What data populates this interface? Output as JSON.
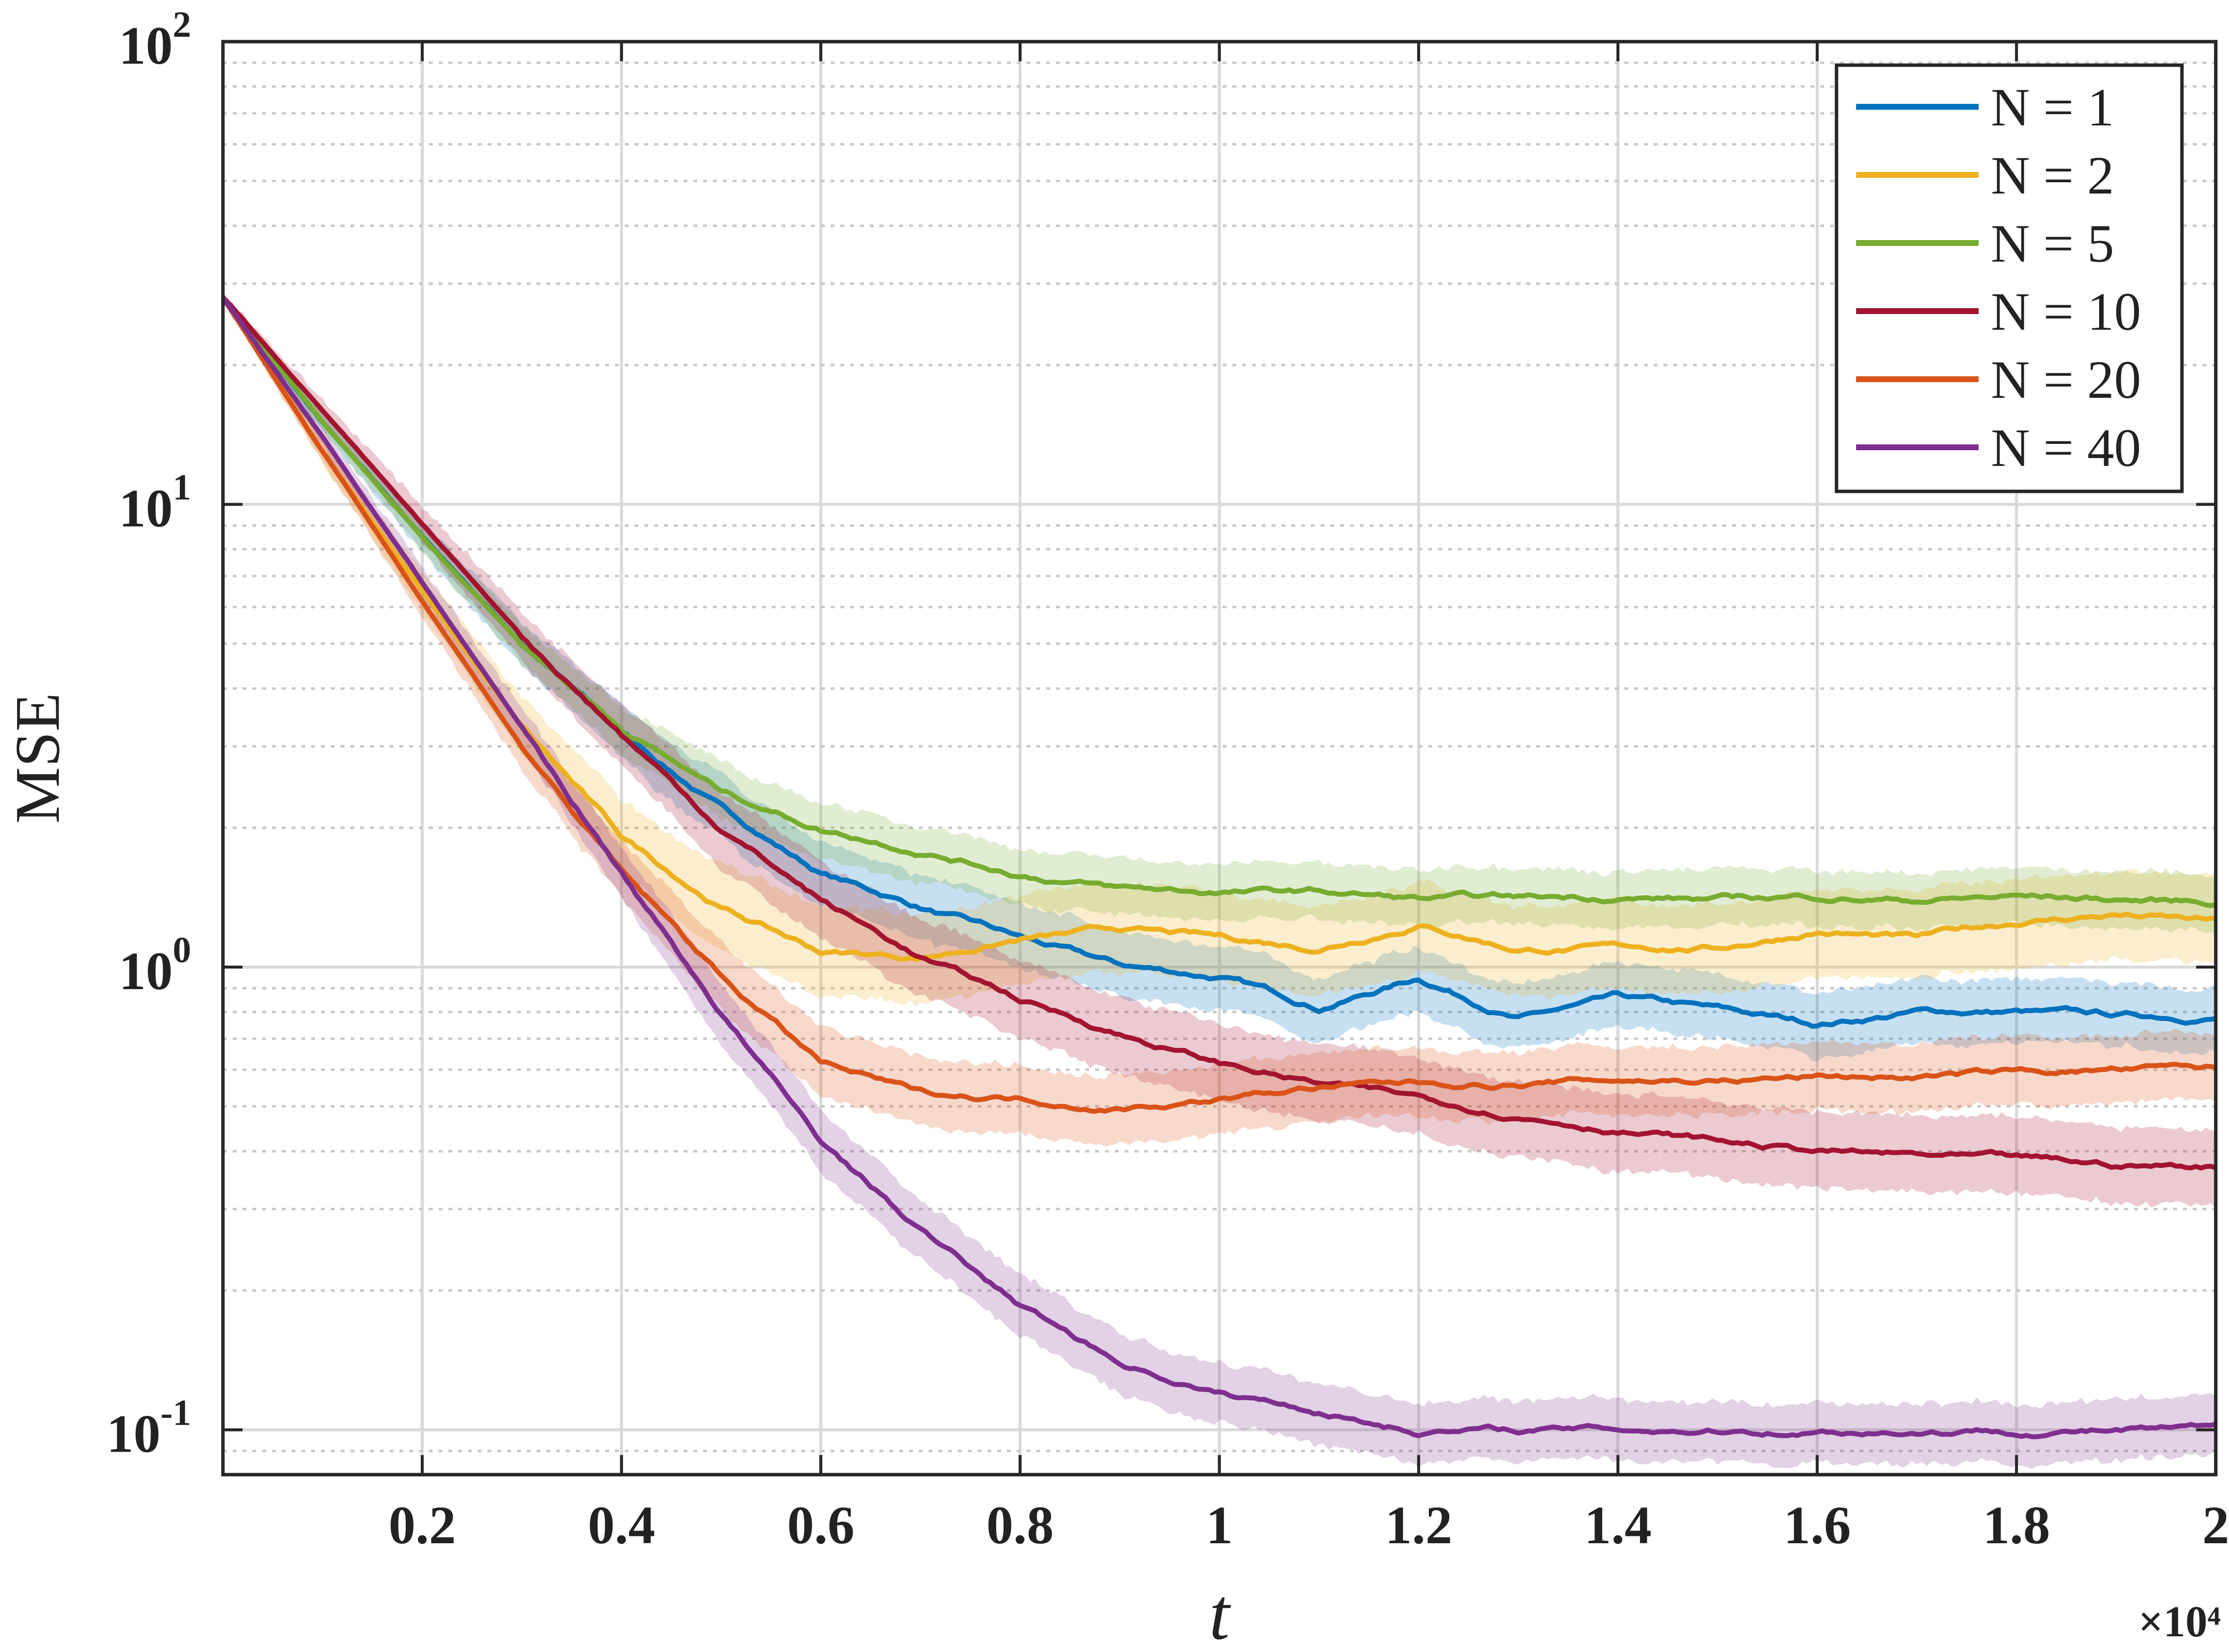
{
  "chart_data": {
    "type": "line",
    "xlabel": "t",
    "ylabel": "MSE",
    "x_multiplier_label": "×10⁴",
    "xlim": [
      0,
      20000
    ],
    "ylim": [
      0.08,
      100
    ],
    "yscale": "log",
    "grid": true,
    "legend_position": "top-right",
    "x_ticks": [
      {
        "value": 2000,
        "label": "0.2"
      },
      {
        "value": 4000,
        "label": "0.4"
      },
      {
        "value": 6000,
        "label": "0.6"
      },
      {
        "value": 8000,
        "label": "0.8"
      },
      {
        "value": 10000,
        "label": "1"
      },
      {
        "value": 12000,
        "label": "1.2"
      },
      {
        "value": 14000,
        "label": "1.4"
      },
      {
        "value": 16000,
        "label": "1.6"
      },
      {
        "value": 18000,
        "label": "1.8"
      },
      {
        "value": 20000,
        "label": "2"
      }
    ],
    "y_ticks": [
      {
        "value": 0.1,
        "base": "10",
        "exp": "-1"
      },
      {
        "value": 1,
        "base": "10",
        "exp": "0"
      },
      {
        "value": 10,
        "base": "10",
        "exp": "1"
      },
      {
        "value": 100,
        "base": "10",
        "exp": "2"
      }
    ],
    "x": [
      0,
      1000,
      2000,
      3000,
      4000,
      5000,
      6000,
      7000,
      8000,
      9000,
      10000,
      11000,
      12000,
      13000,
      14000,
      15000,
      16000,
      17000,
      18000,
      19000,
      20000
    ],
    "series": [
      {
        "name": "N = 1",
        "color": "#0072BD",
        "values": [
          28,
          15,
          8.5,
          5.0,
          3.2,
          2.2,
          1.6,
          1.35,
          1.15,
          1.0,
          0.95,
          0.82,
          0.95,
          0.78,
          0.85,
          0.8,
          0.75,
          0.8,
          0.8,
          0.78,
          0.78
        ],
        "band": 0.14
      },
      {
        "name": "N = 2",
        "color": "#EDB120",
        "values": [
          28,
          13,
          6.5,
          3.3,
          1.9,
          1.35,
          1.08,
          1.05,
          1.15,
          1.2,
          1.15,
          1.1,
          1.25,
          1.1,
          1.1,
          1.1,
          1.2,
          1.15,
          1.25,
          1.3,
          1.25
        ],
        "band": 0.2
      },
      {
        "name": "N = 5",
        "color": "#77AC30",
        "values": [
          28,
          15,
          8.5,
          5.0,
          3.3,
          2.4,
          2.0,
          1.8,
          1.6,
          1.48,
          1.45,
          1.45,
          1.4,
          1.4,
          1.42,
          1.4,
          1.42,
          1.4,
          1.42,
          1.4,
          1.38
        ],
        "band": 0.12
      },
      {
        "name": "N = 10",
        "color": "#A2142F",
        "values": [
          28,
          16,
          9.0,
          5.2,
          3.2,
          2.0,
          1.4,
          1.05,
          0.85,
          0.72,
          0.62,
          0.56,
          0.52,
          0.48,
          0.45,
          0.42,
          0.4,
          0.39,
          0.38,
          0.37,
          0.37
        ],
        "band": 0.17
      },
      {
        "name": "N = 20",
        "color": "#D95319",
        "values": [
          28,
          13,
          6.2,
          3.0,
          1.6,
          0.95,
          0.62,
          0.53,
          0.52,
          0.5,
          0.52,
          0.55,
          0.56,
          0.56,
          0.57,
          0.57,
          0.58,
          0.58,
          0.59,
          0.6,
          0.6
        ],
        "band": 0.15
      },
      {
        "name": "N = 40",
        "color": "#7E2F8E",
        "values": [
          28,
          14,
          6.8,
          3.3,
          1.6,
          0.8,
          0.42,
          0.27,
          0.185,
          0.14,
          0.12,
          0.11,
          0.1,
          0.1,
          0.1,
          0.1,
          0.1,
          0.1,
          0.1,
          0.1,
          0.1
        ],
        "band": 0.13
      }
    ]
  }
}
